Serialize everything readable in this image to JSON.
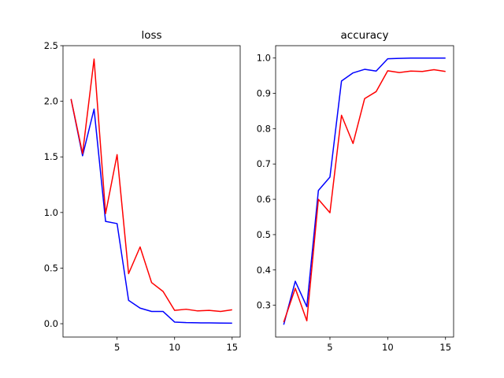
{
  "chart_data": [
    {
      "type": "line",
      "title": "loss",
      "x": [
        1,
        2,
        3,
        4,
        5,
        6,
        7,
        8,
        9,
        10,
        11,
        12,
        13,
        14,
        15
      ],
      "series": [
        {
          "color": "#0000ff",
          "values": [
            2.02,
            1.51,
            1.93,
            0.92,
            0.9,
            0.21,
            0.14,
            0.11,
            0.11,
            0.015,
            0.01,
            0.008,
            0.007,
            0.006,
            0.005
          ]
        },
        {
          "color": "#ff0000",
          "values": [
            2.02,
            1.53,
            2.38,
            0.99,
            1.52,
            0.45,
            0.69,
            0.37,
            0.29,
            0.12,
            0.13,
            0.115,
            0.12,
            0.11,
            0.125
          ]
        }
      ],
      "xlim": [
        0.3,
        15.7
      ],
      "ylim": [
        -0.12,
        2.5
      ],
      "xticks": [
        5,
        10,
        15
      ],
      "xtick_labels": [
        "5",
        "10",
        "15"
      ],
      "yticks": [
        0,
        0.5,
        1.0,
        1.5,
        2.0,
        2.5
      ],
      "ytick_labels": [
        "0.0",
        "0.5",
        "1.0",
        "1.5",
        "2.0",
        "2.5"
      ]
    },
    {
      "type": "line",
      "title": "accuracy",
      "x": [
        1,
        2,
        3,
        4,
        5,
        6,
        7,
        8,
        9,
        10,
        11,
        12,
        13,
        14,
        15
      ],
      "series": [
        {
          "color": "#0000ff",
          "values": [
            0.245,
            0.368,
            0.296,
            0.625,
            0.663,
            0.935,
            0.958,
            0.968,
            0.963,
            0.998,
            0.999,
            1.0,
            1.0,
            1.0,
            1.0
          ]
        },
        {
          "color": "#ff0000",
          "values": [
            0.252,
            0.348,
            0.256,
            0.6,
            0.562,
            0.838,
            0.758,
            0.885,
            0.905,
            0.964,
            0.959,
            0.963,
            0.962,
            0.967,
            0.962
          ]
        }
      ],
      "xlim": [
        0.3,
        15.7
      ],
      "ylim": [
        0.21,
        1.035
      ],
      "xticks": [
        5,
        10,
        15
      ],
      "xtick_labels": [
        "5",
        "10",
        "15"
      ],
      "yticks": [
        0.3,
        0.4,
        0.5,
        0.6,
        0.7,
        0.8,
        0.9,
        1.0
      ],
      "ytick_labels": [
        "0.3",
        "0.4",
        "0.5",
        "0.6",
        "0.7",
        "0.8",
        "0.9",
        "1.0"
      ]
    }
  ]
}
